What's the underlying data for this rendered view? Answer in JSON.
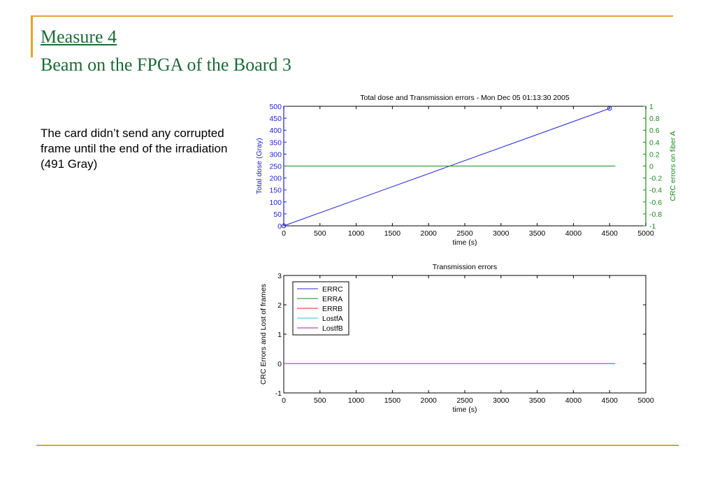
{
  "slide": {
    "title_line1": "Measure 4",
    "title_line2": "Beam on the FPGA of the Board 3",
    "body": "The card didn’t send any corrupted frame until the end of the irradiation (491 Gray)"
  },
  "colors": {
    "rule": "#e0a526",
    "title": "#1c6b35",
    "dose_axis": "#1f22d6",
    "crc_axis": "#1a8a1a"
  },
  "chart_data": [
    {
      "type": "line",
      "title": "Total dose and Transmission errors - Mon Dec 05 01:13:30 2005",
      "xlabel": "time (s)",
      "ylabel": "Total dose (Gray)",
      "y2label": "CRC errors on fiber A",
      "xlim": [
        0,
        5000
      ],
      "ylim": [
        0,
        500
      ],
      "y2lim": [
        -1,
        1
      ],
      "xticks": [
        0,
        500,
        1000,
        1500,
        2000,
        2500,
        3000,
        3500,
        4000,
        4500,
        5000
      ],
      "yticks": [
        0,
        50,
        100,
        150,
        200,
        250,
        300,
        350,
        400,
        450,
        500
      ],
      "y2ticks": [
        -1,
        -0.8,
        -0.6,
        -0.4,
        -0.2,
        0,
        0.2,
        0.4,
        0.6,
        0.8,
        1
      ],
      "grid": false,
      "series": [
        {
          "axis": "left",
          "color": "#1f22d6",
          "x": [
            0,
            4500
          ],
          "y": [
            0,
            491
          ],
          "markers": "circle"
        },
        {
          "axis": "right",
          "color": "#1a8a1a",
          "x": [
            0,
            4580
          ],
          "y": [
            0,
            0
          ]
        }
      ]
    },
    {
      "type": "line",
      "title": "Transmission errors",
      "xlabel": "time (s)",
      "ylabel": "CRC Errors and Lost of frames",
      "xlim": [
        0,
        5000
      ],
      "ylim": [
        -1,
        3
      ],
      "xticks": [
        0,
        500,
        1000,
        1500,
        2000,
        2500,
        3000,
        3500,
        4000,
        4500,
        5000
      ],
      "yticks": [
        -1,
        0,
        1,
        2,
        3
      ],
      "grid": false,
      "legend": "top-left",
      "series": [
        {
          "name": "ERRC",
          "color": "#2b2bd8",
          "x": [
            0,
            4580
          ],
          "y": [
            0,
            0
          ]
        },
        {
          "name": "ERRA",
          "color": "#1a8a1a",
          "x": [
            0,
            4580
          ],
          "y": [
            0,
            0
          ]
        },
        {
          "name": "ERRB",
          "color": "#e02020",
          "x": [
            0,
            4580
          ],
          "y": [
            0,
            0
          ]
        },
        {
          "name": "LostfA",
          "color": "#20c8e0",
          "x": [
            0,
            4580
          ],
          "y": [
            0,
            0
          ]
        },
        {
          "name": "LostfB",
          "color": "#a020a0",
          "x": [
            0,
            4580
          ],
          "y": [
            0,
            0
          ]
        }
      ]
    }
  ]
}
